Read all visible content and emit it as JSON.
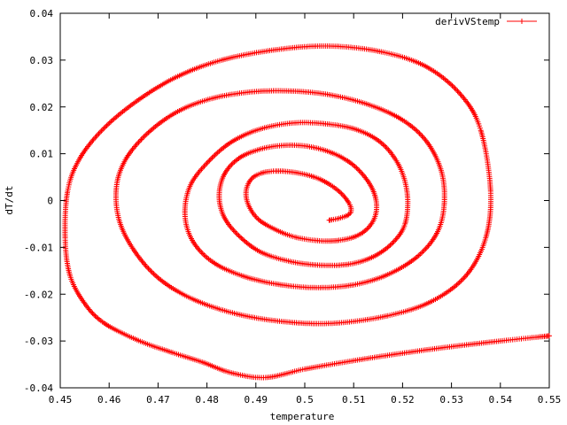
{
  "chart_data": {
    "type": "line",
    "xlabel": "temperature",
    "ylabel": "dT/dt",
    "xlim": [
      0.45,
      0.55
    ],
    "ylim": [
      -0.04,
      0.04
    ],
    "xticks": [
      "0.45",
      "0.46",
      "0.47",
      "0.48",
      "0.49",
      "0.5",
      "0.51",
      "0.52",
      "0.53",
      "0.54",
      "0.55"
    ],
    "yticks": [
      "-0.04",
      "-0.03",
      "-0.02",
      "-0.01",
      "0",
      "0.01",
      "0.02",
      "0.03",
      "0.04"
    ],
    "grid": false,
    "legend_position": "top-right",
    "series": [
      {
        "name": "derivVStemp",
        "color": "#ff0000",
        "marker": "plus",
        "x": [
          0.55,
          0.54,
          0.53,
          0.52,
          0.51,
          0.5,
          0.492,
          0.485,
          0.479,
          0.473,
          0.466,
          0.459,
          0.455,
          0.452,
          0.451,
          0.4515,
          0.454,
          0.459,
          0.466,
          0.474,
          0.483,
          0.494,
          0.505,
          0.516,
          0.525,
          0.532,
          0.536,
          0.538,
          0.537,
          0.533,
          0.526,
          0.517,
          0.506,
          0.496,
          0.486,
          0.477,
          0.47,
          0.465,
          0.462,
          0.4615,
          0.4635,
          0.468,
          0.474,
          0.481,
          0.489,
          0.497,
          0.505,
          0.513,
          0.52,
          0.525,
          0.528,
          0.5285,
          0.527,
          0.523,
          0.517,
          0.51,
          0.502,
          0.494,
          0.487,
          0.481,
          0.477,
          0.4755,
          0.4765,
          0.48,
          0.485,
          0.491,
          0.498,
          0.505,
          0.511,
          0.516,
          0.5195,
          0.521,
          0.5205,
          0.518,
          0.514,
          0.509,
          0.503,
          0.497,
          0.491,
          0.4865,
          0.4835,
          0.4825,
          0.4835,
          0.4865,
          0.491,
          0.496,
          0.501,
          0.506,
          0.51,
          0.513,
          0.5145,
          0.5145,
          0.513,
          0.5105,
          0.507,
          0.503,
          0.498,
          0.494,
          0.4905,
          0.4885,
          0.488,
          0.489,
          0.491,
          0.494,
          0.498,
          0.502,
          0.505,
          0.5075,
          0.509,
          0.5095,
          0.509,
          0.507,
          0.505
        ],
        "y": [
          -0.0289,
          -0.03,
          -0.0312,
          -0.0326,
          -0.0342,
          -0.036,
          -0.0378,
          -0.0368,
          -0.0345,
          -0.0325,
          -0.0299,
          -0.0262,
          -0.022,
          -0.016,
          -0.008,
          0.002,
          0.009,
          0.0155,
          0.0215,
          0.0265,
          0.03,
          0.0322,
          0.033,
          0.0317,
          0.0285,
          0.0225,
          0.015,
          0.002,
          -0.008,
          -0.016,
          -0.0215,
          -0.0246,
          -0.0262,
          -0.0259,
          -0.0242,
          -0.021,
          -0.0165,
          -0.0105,
          -0.004,
          0.003,
          0.009,
          0.0145,
          0.019,
          0.0218,
          0.0232,
          0.0234,
          0.0226,
          0.0205,
          0.0172,
          0.0125,
          0.006,
          -0.001,
          -0.007,
          -0.012,
          -0.0158,
          -0.018,
          -0.0186,
          -0.0178,
          -0.016,
          -0.013,
          -0.0085,
          -0.003,
          0.003,
          0.008,
          0.0125,
          0.0153,
          0.0166,
          0.0163,
          0.015,
          0.012,
          0.007,
          0.001,
          -0.005,
          -0.009,
          -0.012,
          -0.0136,
          -0.0138,
          -0.013,
          -0.011,
          -0.0075,
          -0.0035,
          0.001,
          0.0055,
          0.009,
          0.011,
          0.0118,
          0.0115,
          0.01,
          0.0075,
          0.004,
          0.0005,
          -0.003,
          -0.0058,
          -0.0076,
          -0.0085,
          -0.0086,
          -0.0078,
          -0.0062,
          -0.004,
          -0.001,
          0.002,
          0.0045,
          0.0058,
          0.0063,
          0.006,
          0.005,
          0.0035,
          0.0015,
          -0.0005,
          -0.002,
          -0.003,
          -0.0038,
          -0.0042
        ]
      }
    ]
  }
}
